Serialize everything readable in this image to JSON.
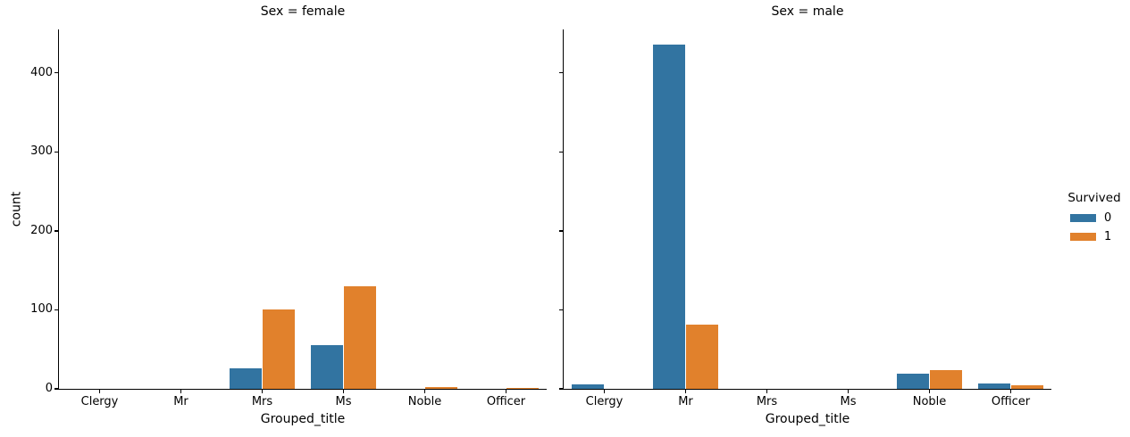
{
  "window": {
    "background": "#ffffff"
  },
  "chart_data": {
    "type": "bar",
    "chart_kind": "faceted_grouped_countplot",
    "xlabel": "Grouped_title",
    "ylabel": "count",
    "categories": [
      "Clergy",
      "Mr",
      "Mrs",
      "Ms",
      "Noble",
      "Officer"
    ],
    "yticks": [
      0,
      100,
      200,
      300,
      400
    ],
    "ylim": [
      0,
      455
    ],
    "grid": false,
    "legend": {
      "title": "Survived",
      "position": "right",
      "entries": [
        {
          "label": "0",
          "color": "#3274a1"
        },
        {
          "label": "1",
          "color": "#e1812c"
        }
      ]
    },
    "facets": [
      {
        "title": "Sex = female",
        "series": [
          {
            "name": "0",
            "color": "#3274a1",
            "values": [
              0,
              0,
              26,
              55,
              0,
              0
            ]
          },
          {
            "name": "1",
            "color": "#e1812c",
            "values": [
              0,
              0,
              100,
              130,
              2,
              1
            ]
          }
        ]
      },
      {
        "title": "Sex = male",
        "series": [
          {
            "name": "0",
            "color": "#3274a1",
            "values": [
              6,
              436,
              0,
              0,
              19,
              7
            ]
          },
          {
            "name": "1",
            "color": "#e1812c",
            "values": [
              0,
              81,
              0,
              0,
              24,
              4
            ]
          }
        ]
      }
    ]
  }
}
